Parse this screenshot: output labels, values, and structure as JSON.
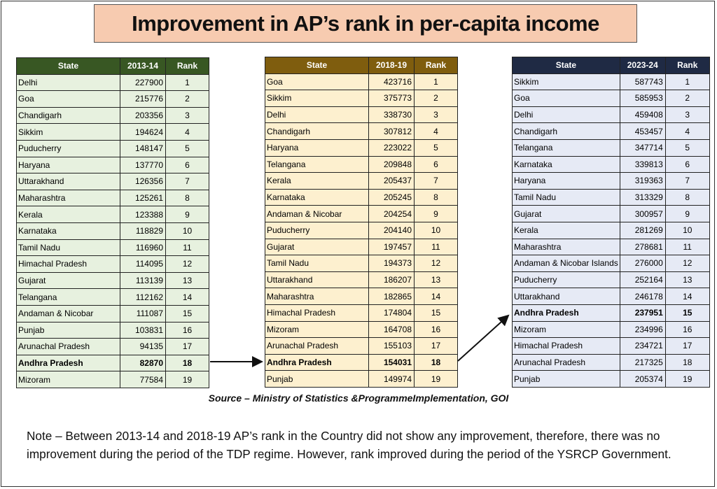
{
  "title": "Improvement in AP’s rank in per-capita income",
  "tables": [
    {
      "headers": [
        "State",
        "2013-14",
        "Rank"
      ],
      "rows": [
        {
          "state": "Delhi",
          "value": "227900",
          "rank": "1"
        },
        {
          "state": "Goa",
          "value": "215776",
          "rank": "2"
        },
        {
          "state": "Chandigarh",
          "value": "203356",
          "rank": "3"
        },
        {
          "state": "Sikkim",
          "value": "194624",
          "rank": "4"
        },
        {
          "state": "Puducherry",
          "value": "148147",
          "rank": "5"
        },
        {
          "state": "Haryana",
          "value": "137770",
          "rank": "6"
        },
        {
          "state": "Uttarakhand",
          "value": "126356",
          "rank": "7"
        },
        {
          "state": "Maharashtra",
          "value": "125261",
          "rank": "8"
        },
        {
          "state": "Kerala",
          "value": "123388",
          "rank": "9"
        },
        {
          "state": "Karnataka",
          "value": "118829",
          "rank": "10"
        },
        {
          "state": "Tamil Nadu",
          "value": "116960",
          "rank": "11"
        },
        {
          "state": "Himachal Pradesh",
          "value": "114095",
          "rank": "12"
        },
        {
          "state": "Gujarat",
          "value": "113139",
          "rank": "13"
        },
        {
          "state": "Telangana",
          "value": "112162",
          "rank": "14"
        },
        {
          "state": "Andaman & Nicobar",
          "value": "111087",
          "rank": "15"
        },
        {
          "state": "Punjab",
          "value": "103831",
          "rank": "16"
        },
        {
          "state": "Arunachal Pradesh",
          "value": "94135",
          "rank": "17"
        },
        {
          "state": "Andhra Pradesh",
          "value": "82870",
          "rank": "18",
          "highlight": true
        },
        {
          "state": "Mizoram",
          "value": "77584",
          "rank": "19"
        }
      ]
    },
    {
      "headers": [
        "State",
        "2018-19",
        "Rank"
      ],
      "rows": [
        {
          "state": "Goa",
          "value": "423716",
          "rank": "1"
        },
        {
          "state": "Sikkim",
          "value": "375773",
          "rank": "2"
        },
        {
          "state": "Delhi",
          "value": "338730",
          "rank": "3"
        },
        {
          "state": "Chandigarh",
          "value": "307812",
          "rank": "4"
        },
        {
          "state": "Haryana",
          "value": "223022",
          "rank": "5"
        },
        {
          "state": "Telangana",
          "value": "209848",
          "rank": "6"
        },
        {
          "state": "Kerala",
          "value": "205437",
          "rank": "7"
        },
        {
          "state": "Karnataka",
          "value": "205245",
          "rank": "8"
        },
        {
          "state": "Andaman & Nicobar",
          "value": "204254",
          "rank": "9"
        },
        {
          "state": "Puducherry",
          "value": "204140",
          "rank": "10"
        },
        {
          "state": "Gujarat",
          "value": "197457",
          "rank": "11"
        },
        {
          "state": "Tamil Nadu",
          "value": "194373",
          "rank": "12"
        },
        {
          "state": "Uttarakhand",
          "value": "186207",
          "rank": "13"
        },
        {
          "state": "Maharashtra",
          "value": "182865",
          "rank": "14"
        },
        {
          "state": "Himachal Pradesh",
          "value": "174804",
          "rank": "15"
        },
        {
          "state": "Mizoram",
          "value": "164708",
          "rank": "16"
        },
        {
          "state": "Arunachal Pradesh",
          "value": "155103",
          "rank": "17"
        },
        {
          "state": "Andhra Pradesh",
          "value": "154031",
          "rank": "18",
          "highlight": true
        },
        {
          "state": "Punjab",
          "value": "149974",
          "rank": "19"
        }
      ]
    },
    {
      "headers": [
        "State",
        "2023-24",
        "Rank"
      ],
      "rows": [
        {
          "state": "Sikkim",
          "value": "587743",
          "rank": "1"
        },
        {
          "state": "Goa",
          "value": "585953",
          "rank": "2"
        },
        {
          "state": "Delhi",
          "value": "459408",
          "rank": "3"
        },
        {
          "state": "Chandigarh",
          "value": "453457",
          "rank": "4"
        },
        {
          "state": "Telangana",
          "value": "347714",
          "rank": "5"
        },
        {
          "state": "Karnataka",
          "value": "339813",
          "rank": "6"
        },
        {
          "state": "Haryana",
          "value": "319363",
          "rank": "7"
        },
        {
          "state": "Tamil Nadu",
          "value": "313329",
          "rank": "8"
        },
        {
          "state": "Gujarat",
          "value": "300957",
          "rank": "9"
        },
        {
          "state": "Kerala",
          "value": "281269",
          "rank": "10"
        },
        {
          "state": "Maharashtra",
          "value": "278681",
          "rank": "11"
        },
        {
          "state": "Andaman & Nicobar Islands",
          "value": "276000",
          "rank": "12"
        },
        {
          "state": "Puducherry",
          "value": "252164",
          "rank": "13"
        },
        {
          "state": "Uttarakhand",
          "value": "246178",
          "rank": "14"
        },
        {
          "state": "Andhra Pradesh",
          "value": "237951",
          "rank": "15",
          "highlight": true
        },
        {
          "state": "Mizoram",
          "value": "234996",
          "rank": "16"
        },
        {
          "state": "Himachal Pradesh",
          "value": "234721",
          "rank": "17"
        },
        {
          "state": "Arunachal Pradesh",
          "value": "217325",
          "rank": "18"
        },
        {
          "state": "Punjab",
          "value": "205374",
          "rank": "19"
        }
      ]
    }
  ],
  "source": "Source – Ministry of Statistics &ProgrammeImplementation, GOI",
  "note": "Note – Between 2013-14 and 2018-19 AP’s rank in the Country did not show any improvement, therefore, there was no improvement during the period of the TDP regime. However, rank improved during the period of the YSRCP Government.",
  "colors": {
    "title_bg": "#f7cbb0",
    "table1_header": "#385723",
    "table1_body": "#e7f1df",
    "table2_header": "#7f5d0e",
    "table2_body": "#fdf0cf",
    "table3_header": "#1f2a44",
    "table3_body": "#e6eaf5"
  }
}
